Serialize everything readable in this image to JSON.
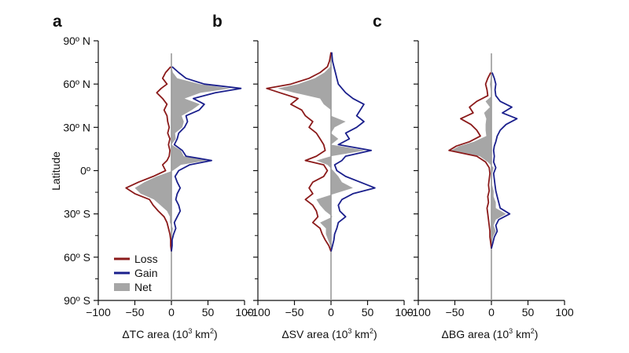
{
  "chart_data": {
    "type": "area",
    "ylabel": "Latitude",
    "y_ticks": [
      {
        "value": 90,
        "label": "90º N"
      },
      {
        "value": 60,
        "label": "60º N"
      },
      {
        "value": 30,
        "label": "30º N"
      },
      {
        "value": 0,
        "label": "0º"
      },
      {
        "value": -30,
        "label": "30º S"
      },
      {
        "value": -60,
        "label": "60º S"
      },
      {
        "value": -90,
        "label": "90º S"
      }
    ],
    "ylim": [
      -90,
      90
    ],
    "x_ticks": [
      {
        "value": -100,
        "label": "−100"
      },
      {
        "value": -50,
        "label": "−50"
      },
      {
        "value": 0,
        "label": "0"
      },
      {
        "value": 50,
        "label": "50"
      },
      {
        "value": 100,
        "label": "100"
      }
    ],
    "xlim": [
      -100,
      100
    ],
    "legend": {
      "placement": "bottom-left of panel a",
      "entries": [
        {
          "name": "Loss",
          "color": "#8b1a1a"
        },
        {
          "name": "Gain",
          "color": "#1a1f8c"
        },
        {
          "name": "Net",
          "color": "#a6a6a6"
        }
      ]
    },
    "colors": {
      "loss": "#8b1a1a",
      "gain": "#1a1f8c",
      "net": "#a6a6a6",
      "zero_line": "#9a9a9a"
    },
    "panels": [
      {
        "letter": "a",
        "xlabel_prefix": "ΔTC area (10",
        "xlabel_sup": "3",
        "xlabel_mid": " km",
        "xlabel_sup2": "2",
        "xlabel_suffix": ")",
        "lat": [
          72,
          68,
          64,
          60,
          57,
          54,
          50,
          46,
          42,
          38,
          34,
          30,
          26,
          22,
          18,
          14,
          10,
          7,
          4,
          0,
          -4,
          -8,
          -12,
          -16,
          -20,
          -24,
          -28,
          -32,
          -36,
          -40,
          -44,
          -48,
          -52,
          -56
        ],
        "loss": [
          -1,
          -8,
          -12,
          -6,
          -14,
          -20,
          -12,
          -6,
          -10,
          -6,
          -5,
          -3,
          -5,
          -2,
          -4,
          -2,
          -3,
          -6,
          -12,
          -8,
          -25,
          -45,
          -62,
          -50,
          -30,
          -25,
          -18,
          -10,
          -6,
          -4,
          -2,
          -1,
          -1,
          0
        ],
        "gain": [
          1,
          10,
          20,
          45,
          95,
          60,
          30,
          45,
          38,
          20,
          22,
          18,
          10,
          8,
          4,
          15,
          20,
          55,
          25,
          10,
          5,
          8,
          12,
          8,
          6,
          10,
          12,
          8,
          4,
          6,
          3,
          1,
          1,
          0
        ]
      },
      {
        "letter": "b",
        "xlabel_prefix": "ΔSV area (10",
        "xlabel_sup": "3",
        "xlabel_mid": " km",
        "xlabel_sup2": "2",
        "xlabel_suffix": ")",
        "lat": [
          82,
          76,
          72,
          68,
          64,
          60,
          57,
          54,
          50,
          46,
          42,
          38,
          34,
          30,
          26,
          22,
          18,
          14,
          10,
          7,
          4,
          0,
          -4,
          -8,
          -12,
          -16,
          -20,
          -24,
          -28,
          -32,
          -36,
          -40,
          -44,
          -48,
          -52,
          -56
        ],
        "loss": [
          0,
          -2,
          -5,
          -15,
          -30,
          -55,
          -88,
          -70,
          -45,
          -55,
          -40,
          -35,
          -25,
          -30,
          -20,
          -15,
          -10,
          -8,
          -20,
          -35,
          -10,
          -5,
          -10,
          -25,
          -30,
          -25,
          -35,
          -25,
          -20,
          -18,
          -25,
          -15,
          -12,
          -8,
          -3,
          0
        ],
        "gain": [
          1,
          2,
          4,
          6,
          8,
          10,
          15,
          20,
          30,
          45,
          40,
          35,
          45,
          35,
          20,
          25,
          10,
          55,
          20,
          15,
          5,
          8,
          20,
          40,
          60,
          30,
          15,
          10,
          12,
          20,
          10,
          8,
          5,
          4,
          2,
          0
        ]
      },
      {
        "letter": "c",
        "xlabel_prefix": "ΔBG area (10",
        "xlabel_sup": "3",
        "xlabel_mid": " km",
        "xlabel_sup2": "2",
        "xlabel_suffix": ")",
        "lat": [
          68,
          64,
          60,
          56,
          52,
          48,
          44,
          40,
          36,
          32,
          28,
          24,
          20,
          17,
          14,
          10,
          6,
          2,
          -2,
          -6,
          -10,
          -14,
          -18,
          -22,
          -26,
          -30,
          -34,
          -38,
          -42,
          -46,
          -50,
          -54
        ],
        "loss": [
          -1,
          -5,
          -8,
          -6,
          -5,
          -20,
          -30,
          -25,
          -42,
          -28,
          -20,
          -15,
          -30,
          -48,
          -58,
          -20,
          -8,
          -3,
          -2,
          -3,
          -4,
          -3,
          -5,
          -4,
          -6,
          -5,
          -4,
          -3,
          -2,
          -2,
          -1,
          0
        ],
        "gain": [
          1,
          4,
          6,
          5,
          6,
          12,
          28,
          15,
          35,
          20,
          12,
          8,
          6,
          4,
          3,
          4,
          3,
          6,
          3,
          4,
          5,
          6,
          8,
          10,
          12,
          25,
          10,
          6,
          8,
          4,
          2,
          0
        ]
      }
    ]
  }
}
